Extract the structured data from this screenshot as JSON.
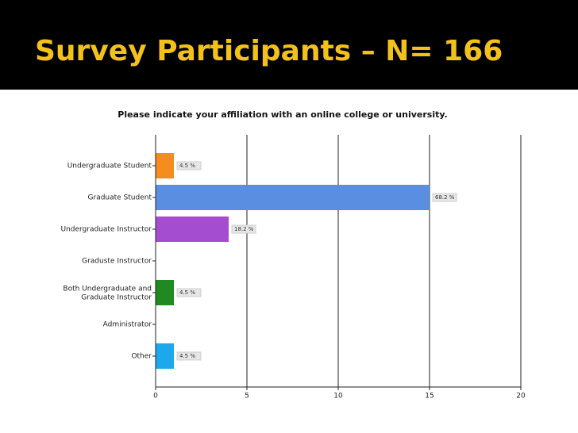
{
  "slide_title": "Survey Participants – N= 166",
  "chart_data": {
    "type": "bar",
    "orientation": "horizontal",
    "title": "Please indicate your affiliation with an online college or university.",
    "categories": [
      "Undergraduate Student",
      "Graduate Student",
      "Undergraduate Instructor",
      "Graduste Instructor",
      "Both Undergraduate and\nGraduate Instructor",
      "Administrator",
      "Other"
    ],
    "values": [
      1,
      15,
      4,
      0,
      1,
      0,
      1
    ],
    "value_labels": [
      "4.5 %",
      "68.2 %",
      "18.2 %",
      null,
      "4.5 %",
      null,
      "4.5 %"
    ],
    "colors": [
      "#f58d1e",
      "#5a8ee0",
      "#a54dd0",
      "#888888",
      "#1f8a22",
      "#888888",
      "#1ea8ec"
    ],
    "xlim": [
      0,
      20
    ],
    "xticks": [
      0,
      5,
      10,
      15,
      20
    ],
    "grid": true
  }
}
